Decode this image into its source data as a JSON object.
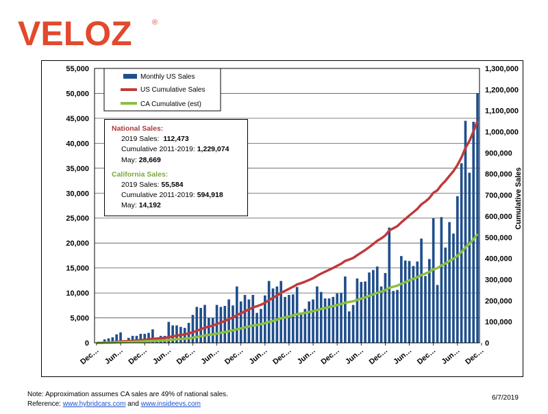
{
  "brand": {
    "name": "VELOZ",
    "mark": "®",
    "color": "#e2492d"
  },
  "chart_data": {
    "type": "bar+line",
    "title": "",
    "y_left": {
      "min": 0,
      "max": 55000,
      "step": 5000,
      "tick_labels": [
        "0",
        "5,000",
        "10,000",
        "15,000",
        "20,000",
        "25,000",
        "30,000",
        "35,000",
        "40,000",
        "45,000",
        "50,000",
        "55,000"
      ]
    },
    "y_right": {
      "label": "Cumulative Sales",
      "min": 0,
      "max": 1300000,
      "step": 100000,
      "tick_labels": [
        "0",
        "100,000",
        "200,000",
        "300,000",
        "400,000",
        "500,000",
        "600,000",
        "700,000",
        "800,000",
        "900,000",
        "1,000,000",
        "1,100,000",
        "1,200,000",
        "1,300,000"
      ]
    },
    "x_tick_labels": [
      "Dec…",
      "Jun…",
      "Dec…",
      "Jun…",
      "Dec…",
      "Jun…",
      "Dec…",
      "Jun…",
      "Dec…",
      "Jun…",
      "Dec…",
      "Jun…",
      "Dec…",
      "Jun…",
      "Dec…",
      "Jun…",
      "Dec…"
    ],
    "months_count": 96,
    "series": [
      {
        "name": "Monthly US Sales",
        "kind": "bar",
        "axis": "left",
        "color": "#1f4e8c",
        "values": [
          0,
          0,
          700,
          900,
          1100,
          1700,
          2100,
          500,
          1000,
          1400,
          1400,
          1800,
          1800,
          2000,
          2700,
          1000,
          1400,
          1400,
          4200,
          3500,
          3500,
          3200,
          3000,
          4000,
          5600,
          7200,
          7000,
          7600,
          5000,
          5000,
          7600,
          7200,
          7400,
          8700,
          7500,
          11300,
          8300,
          9600,
          8700,
          9600,
          6000,
          6800,
          9500,
          12400,
          10900,
          11300,
          12400,
          9200,
          9600,
          9700,
          11200,
          6100,
          6800,
          8300,
          8700,
          11300,
          10200,
          8900,
          8900,
          9200,
          9900,
          10000,
          13300,
          6300,
          7600,
          12900,
          12200,
          12300,
          14100,
          14600,
          15300,
          11300,
          14000,
          23100,
          10400,
          10600,
          17400,
          16500,
          16400,
          15400,
          16300,
          20900,
          13400,
          16800,
          25000,
          11600,
          25200,
          19100,
          24200,
          21900,
          29400,
          36000,
          44500,
          34100,
          44300,
          50000
        ]
      },
      {
        "name": "US Cumulative Sales",
        "kind": "line",
        "axis": "right",
        "color": "#c0393b"
      },
      {
        "name": "CA Cumulative (est)",
        "kind": "line",
        "axis": "right",
        "color": "#8cbf3f"
      }
    ]
  },
  "annotation": {
    "national_title": "National Sales:",
    "national_2019_label": "2019 Sales:",
    "national_2019_value": "112,473",
    "national_cum_label": "Cumulative 2011-2019:",
    "national_cum_value": "1,229,074",
    "national_may_label": "May:",
    "national_may_value": "28,669",
    "california_title": "California Sales:",
    "ca_2019_label": "2019 Sales:",
    "ca_2019_value": "55,584",
    "ca_cum_label": "Cumulative 2011-2019:",
    "ca_cum_value": "594,918",
    "ca_may_label": "May:",
    "ca_may_value": "14,192"
  },
  "footer": {
    "note": "Note:  Approximation assumes CA sales are 49% of national sales.",
    "reference_prefix": "Reference:",
    "link1": "www.hybridcars.com",
    "reference_and": "and",
    "link2": "www.insideevs.com",
    "date": "6/7/2019"
  }
}
